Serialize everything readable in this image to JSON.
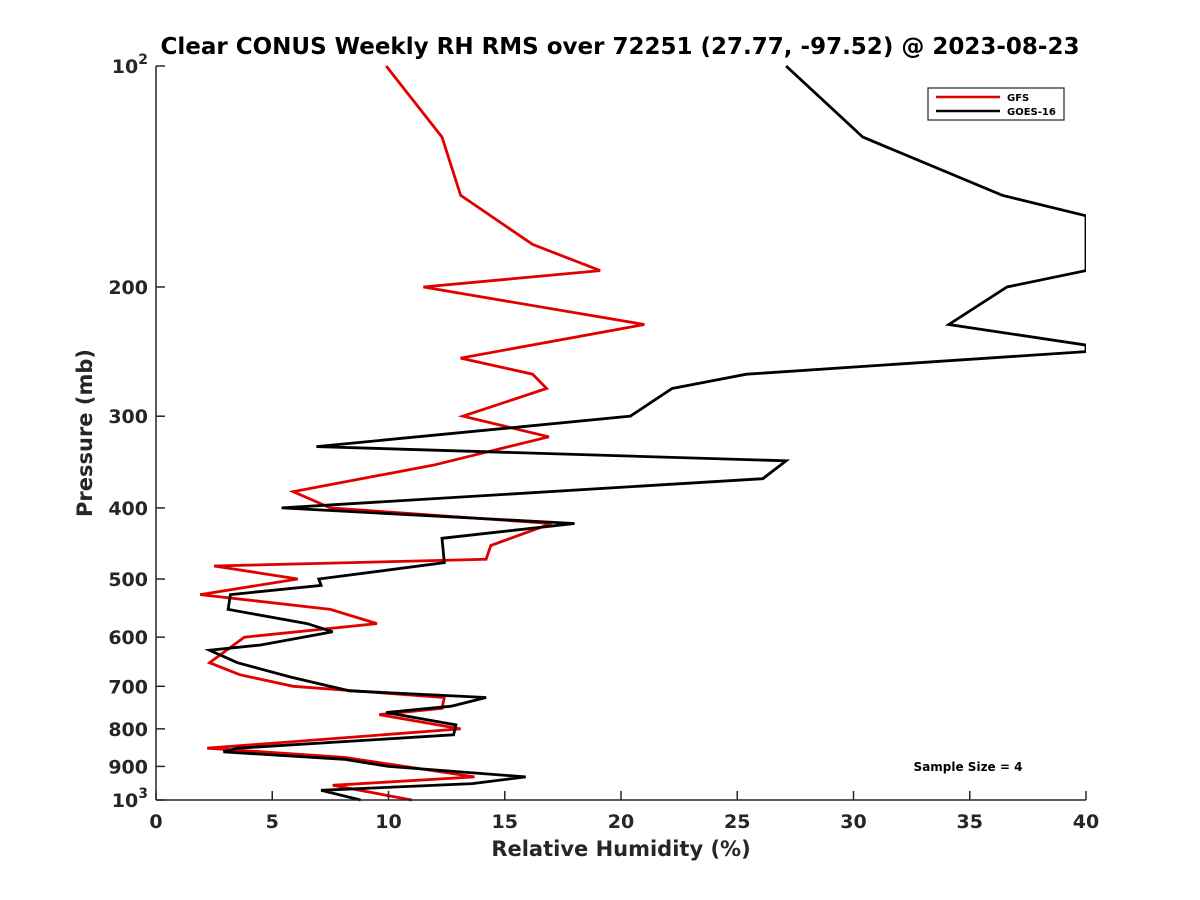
{
  "chart_data": {
    "type": "line",
    "title": "Clear CONUS Weekly RH RMS over 72251 (27.77, -97.52) @ 2023-08-23",
    "xlabel": "Relative Humidity (%)",
    "ylabel": "Pressure (mb)",
    "xlim": [
      0,
      40
    ],
    "ylim": [
      100,
      1000
    ],
    "y_scale": "log",
    "y_reversed": true,
    "x_ticks": [
      "0",
      "5",
      "10",
      "15",
      "20",
      "25",
      "30",
      "35",
      "40"
    ],
    "y_ticks": [
      {
        "value": 100,
        "base": "10",
        "exp": "2"
      },
      {
        "value": 200,
        "label": "200"
      },
      {
        "value": 300,
        "label": "300"
      },
      {
        "value": 400,
        "label": "400"
      },
      {
        "value": 500,
        "label": "500"
      },
      {
        "value": 600,
        "label": "600"
      },
      {
        "value": 700,
        "label": "700"
      },
      {
        "value": 800,
        "label": "800"
      },
      {
        "value": 900,
        "label": "900"
      },
      {
        "value": 1000,
        "base": "10",
        "exp": "3"
      }
    ],
    "grid": false,
    "legend_position": "top-right",
    "series": [
      {
        "name": "GFS",
        "color": "#e00000",
        "points": [
          [
            9.9,
            100
          ],
          [
            12.3,
            125
          ],
          [
            13.1,
            150
          ],
          [
            16.2,
            175
          ],
          [
            19.1,
            190
          ],
          [
            11.5,
            200
          ],
          [
            21.0,
            225
          ],
          [
            13.1,
            250
          ],
          [
            16.2,
            263
          ],
          [
            16.8,
            275
          ],
          [
            13.2,
            300
          ],
          [
            16.9,
            320
          ],
          [
            11.9,
            350
          ],
          [
            5.9,
            380
          ],
          [
            7.5,
            400
          ],
          [
            17.0,
            420
          ],
          [
            14.4,
            450
          ],
          [
            14.2,
            470
          ],
          [
            2.5,
            480
          ],
          [
            6.1,
            500
          ],
          [
            1.9,
            525
          ],
          [
            7.5,
            550
          ],
          [
            9.5,
            575
          ],
          [
            3.8,
            600
          ],
          [
            2.3,
            650
          ],
          [
            3.6,
            675
          ],
          [
            5.9,
            700
          ],
          [
            12.4,
            725
          ],
          [
            12.3,
            750
          ],
          [
            9.6,
            765
          ],
          [
            13.1,
            800
          ],
          [
            2.2,
            850
          ],
          [
            8.1,
            875
          ],
          [
            13.7,
            930
          ],
          [
            7.6,
            955
          ],
          [
            11.0,
            1000
          ]
        ]
      },
      {
        "name": "GOES-16",
        "color": "#000000",
        "points": [
          [
            27.1,
            100
          ],
          [
            30.4,
            125
          ],
          [
            36.4,
            150
          ],
          [
            40.0,
            160
          ],
          [
            40.0,
            190
          ],
          [
            36.6,
            200
          ],
          [
            34.1,
            225
          ],
          [
            40.0,
            240
          ],
          [
            40.0,
            245
          ],
          [
            25.4,
            263
          ],
          [
            22.2,
            275
          ],
          [
            20.4,
            300
          ],
          [
            6.9,
            330
          ],
          [
            27.1,
            345
          ],
          [
            26.1,
            365
          ],
          [
            5.4,
            400
          ],
          [
            18.0,
            420
          ],
          [
            12.3,
            440
          ],
          [
            12.4,
            475
          ],
          [
            7.0,
            500
          ],
          [
            7.1,
            510
          ],
          [
            3.2,
            525
          ],
          [
            3.1,
            550
          ],
          [
            6.5,
            575
          ],
          [
            7.6,
            590
          ],
          [
            4.5,
            615
          ],
          [
            2.3,
            625
          ],
          [
            3.5,
            650
          ],
          [
            5.8,
            680
          ],
          [
            8.3,
            710
          ],
          [
            14.2,
            725
          ],
          [
            12.7,
            745
          ],
          [
            9.9,
            760
          ],
          [
            12.9,
            790
          ],
          [
            12.8,
            815
          ],
          [
            3.5,
            850
          ],
          [
            2.9,
            860
          ],
          [
            8.1,
            880
          ],
          [
            10.0,
            900
          ],
          [
            15.9,
            930
          ],
          [
            13.6,
            950
          ],
          [
            7.1,
            970
          ],
          [
            8.8,
            1000
          ]
        ]
      }
    ],
    "annotations": [
      "Sample Size = 4"
    ]
  }
}
